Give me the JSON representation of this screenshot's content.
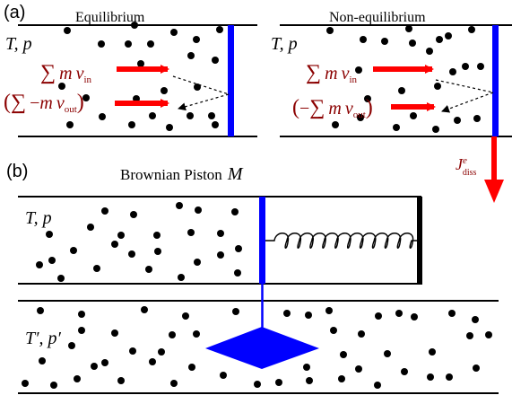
{
  "panel_a": {
    "label": "(a)",
    "equilibrium": {
      "title": "Equilibrium",
      "state": "T, p",
      "in_sum": "∑",
      "in_m": "m",
      "in_v": "v",
      "in_sub": "in",
      "out_open": "(",
      "out_sum": "∑",
      "out_minus": "−",
      "out_m": "m",
      "out_v": "v",
      "out_sub": "out",
      "out_close": ")"
    },
    "non_equilibrium": {
      "title": "Non-equilibrium",
      "state": "T, p",
      "in_sum": "∑",
      "in_m": "m",
      "in_v": "v",
      "in_sub": "in",
      "out_open": "(",
      "out_minus": "−",
      "out_sum": "∑",
      "out_m": "m",
      "out_v": "v",
      "out_sub": "out",
      "out_close": ")",
      "flux_J": "J",
      "flux_sup": "e",
      "flux_sub": "diss"
    }
  },
  "panel_b": {
    "label": "(b)",
    "title": "Brownian Piston",
    "title_symbol": "M",
    "upper_state": "T, p",
    "lower_state": "T′, p′"
  },
  "colors": {
    "piston": "#0000ff",
    "arrow": "#ff0000",
    "math_text": "#8b0000",
    "walls": "#000000",
    "particles": "#000000"
  }
}
